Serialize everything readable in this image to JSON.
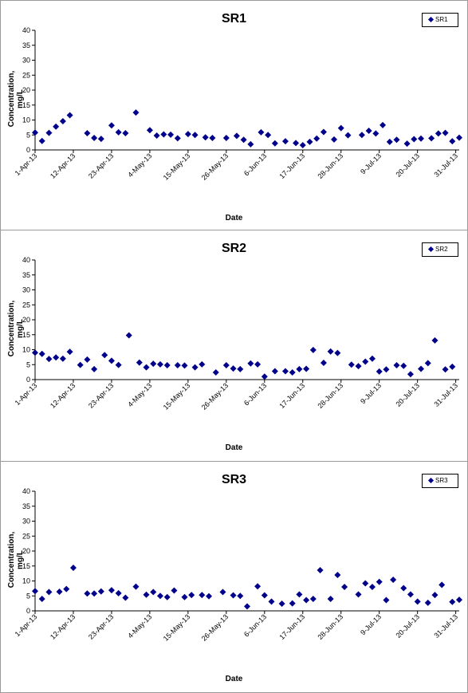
{
  "charts": [
    {
      "title": "SR1",
      "legend": "SR1"
    },
    {
      "title": "SR2",
      "legend": "SR2"
    },
    {
      "title": "SR3",
      "legend": "SR3"
    }
  ],
  "chart_data": [
    {
      "type": "scatter",
      "title": "SR1",
      "xlabel": "Date",
      "ylabel": "Concentration, mg/L",
      "ylim": [
        0,
        40
      ],
      "yticks": [
        0,
        5,
        10,
        15,
        20,
        25,
        30,
        35,
        40
      ],
      "xticks": [
        "1-Apr-13",
        "12-Apr-13",
        "23-Apr-13",
        "4-May-13",
        "15-May-13",
        "26-May-13",
        "6-Jun-13",
        "17-Jun-13",
        "28-Jun-13",
        "9-Jul-13",
        "20-Jul-13",
        "31-Jul-13"
      ],
      "xlim": [
        "2013-04-01",
        "2013-08-01"
      ],
      "grid": false,
      "legend_position": "top-right",
      "marker_color": "#00008b",
      "series": [
        {
          "name": "SR1",
          "points": [
            [
              "2013-04-01",
              5.8
            ],
            [
              "2013-04-03",
              3.0
            ],
            [
              "2013-04-05",
              5.7
            ],
            [
              "2013-04-07",
              7.8
            ],
            [
              "2013-04-09",
              9.6
            ],
            [
              "2013-04-11",
              11.6
            ],
            [
              "2013-04-16",
              5.6
            ],
            [
              "2013-04-18",
              4.0
            ],
            [
              "2013-04-20",
              3.7
            ],
            [
              "2013-04-23",
              8.2
            ],
            [
              "2013-04-25",
              5.9
            ],
            [
              "2013-04-27",
              5.6
            ],
            [
              "2013-04-30",
              12.5
            ],
            [
              "2013-05-04",
              6.6
            ],
            [
              "2013-05-06",
              4.8
            ],
            [
              "2013-05-08",
              5.2
            ],
            [
              "2013-05-10",
              5.1
            ],
            [
              "2013-05-12",
              3.9
            ],
            [
              "2013-05-15",
              5.3
            ],
            [
              "2013-05-17",
              5.0
            ],
            [
              "2013-05-20",
              4.2
            ],
            [
              "2013-05-22",
              4.0
            ],
            [
              "2013-05-26",
              4.0
            ],
            [
              "2013-05-29",
              4.7
            ],
            [
              "2013-05-31",
              3.4
            ],
            [
              "2013-06-02",
              1.9
            ],
            [
              "2013-06-05",
              5.9
            ],
            [
              "2013-06-07",
              5.0
            ],
            [
              "2013-06-09",
              2.2
            ],
            [
              "2013-06-12",
              2.9
            ],
            [
              "2013-06-15",
              2.3
            ],
            [
              "2013-06-17",
              1.6
            ],
            [
              "2013-06-19",
              2.7
            ],
            [
              "2013-06-21",
              3.8
            ],
            [
              "2013-06-23",
              6.0
            ],
            [
              "2013-06-26",
              3.5
            ],
            [
              "2013-06-28",
              7.3
            ],
            [
              "2013-06-30",
              4.9
            ],
            [
              "2013-07-04",
              5.0
            ],
            [
              "2013-07-06",
              6.4
            ],
            [
              "2013-07-08",
              5.5
            ],
            [
              "2013-07-10",
              8.3
            ],
            [
              "2013-07-12",
              2.7
            ],
            [
              "2013-07-14",
              3.4
            ],
            [
              "2013-07-17",
              2.1
            ],
            [
              "2013-07-19",
              3.6
            ],
            [
              "2013-07-21",
              3.8
            ],
            [
              "2013-07-24",
              3.9
            ],
            [
              "2013-07-26",
              5.5
            ],
            [
              "2013-07-28",
              5.7
            ],
            [
              "2013-07-30",
              2.9
            ],
            [
              "2013-08-01",
              4.1
            ]
          ]
        }
      ]
    },
    {
      "type": "scatter",
      "title": "SR2",
      "xlabel": "Date",
      "ylabel": "Concentration, mg/L",
      "ylim": [
        0,
        40
      ],
      "yticks": [
        0,
        5,
        10,
        15,
        20,
        25,
        30,
        35,
        40
      ],
      "xticks": [
        "1-Apr-13",
        "12-Apr-13",
        "23-Apr-13",
        "4-May-13",
        "15-May-13",
        "26-May-13",
        "6-Jun-13",
        "17-Jun-13",
        "28-Jun-13",
        "9-Jul-13",
        "20-Jul-13",
        "31-Jul-13"
      ],
      "xlim": [
        "2013-04-01",
        "2013-08-01"
      ],
      "grid": false,
      "legend_position": "top-right",
      "marker_color": "#00008b",
      "series": [
        {
          "name": "SR2",
          "points": [
            [
              "2013-04-01",
              9.0
            ],
            [
              "2013-04-03",
              8.6
            ],
            [
              "2013-04-05",
              6.9
            ],
            [
              "2013-04-07",
              7.4
            ],
            [
              "2013-04-09",
              7.0
            ],
            [
              "2013-04-11",
              9.3
            ],
            [
              "2013-04-14",
              4.9
            ],
            [
              "2013-04-16",
              6.7
            ],
            [
              "2013-04-18",
              3.5
            ],
            [
              "2013-04-21",
              8.2
            ],
            [
              "2013-04-23",
              6.3
            ],
            [
              "2013-04-25",
              4.9
            ],
            [
              "2013-04-28",
              14.8
            ],
            [
              "2013-05-01",
              5.7
            ],
            [
              "2013-05-03",
              4.1
            ],
            [
              "2013-05-05",
              5.3
            ],
            [
              "2013-05-07",
              5.1
            ],
            [
              "2013-05-09",
              4.8
            ],
            [
              "2013-05-12",
              4.8
            ],
            [
              "2013-05-14",
              4.7
            ],
            [
              "2013-05-17",
              4.1
            ],
            [
              "2013-05-19",
              5.1
            ],
            [
              "2013-05-23",
              2.4
            ],
            [
              "2013-05-26",
              4.8
            ],
            [
              "2013-05-28",
              3.7
            ],
            [
              "2013-05-30",
              3.5
            ],
            [
              "2013-06-02",
              5.4
            ],
            [
              "2013-06-04",
              5.1
            ],
            [
              "2013-06-06",
              1.0
            ],
            [
              "2013-06-09",
              2.8
            ],
            [
              "2013-06-12",
              2.8
            ],
            [
              "2013-06-14",
              2.4
            ],
            [
              "2013-06-16",
              3.5
            ],
            [
              "2013-06-18",
              3.6
            ],
            [
              "2013-06-20",
              9.9
            ],
            [
              "2013-06-23",
              5.6
            ],
            [
              "2013-06-25",
              9.4
            ],
            [
              "2013-06-27",
              8.9
            ],
            [
              "2013-07-01",
              5.0
            ],
            [
              "2013-07-03",
              4.5
            ],
            [
              "2013-07-05",
              6.0
            ],
            [
              "2013-07-07",
              7.0
            ],
            [
              "2013-07-09",
              2.7
            ],
            [
              "2013-07-11",
              3.4
            ],
            [
              "2013-07-14",
              4.8
            ],
            [
              "2013-07-16",
              4.6
            ],
            [
              "2013-07-18",
              1.8
            ],
            [
              "2013-07-21",
              3.6
            ],
            [
              "2013-07-23",
              5.5
            ],
            [
              "2013-07-25",
              13.1
            ],
            [
              "2013-07-28",
              3.4
            ],
            [
              "2013-07-30",
              4.3
            ]
          ]
        }
      ]
    },
    {
      "type": "scatter",
      "title": "SR3",
      "xlabel": "Date",
      "ylabel": "Concentration, mg/L",
      "ylim": [
        0,
        40
      ],
      "yticks": [
        0,
        5,
        10,
        15,
        20,
        25,
        30,
        35,
        40
      ],
      "xticks": [
        "1-Apr-13",
        "12-Apr-13",
        "23-Apr-13",
        "4-May-13",
        "15-May-13",
        "26-May-13",
        "6-Jun-13",
        "17-Jun-13",
        "28-Jun-13",
        "9-Jul-13",
        "20-Jul-13",
        "31-Jul-13"
      ],
      "xlim": [
        "2013-04-01",
        "2013-08-01"
      ],
      "grid": false,
      "legend_position": "top-right",
      "marker_color": "#00008b",
      "series": [
        {
          "name": "SR3",
          "points": [
            [
              "2013-04-01",
              6.6
            ],
            [
              "2013-04-03",
              4.0
            ],
            [
              "2013-04-05",
              6.3
            ],
            [
              "2013-04-08",
              6.4
            ],
            [
              "2013-04-10",
              7.3
            ],
            [
              "2013-04-12",
              14.4
            ],
            [
              "2013-04-16",
              5.8
            ],
            [
              "2013-04-18",
              5.8
            ],
            [
              "2013-04-20",
              6.5
            ],
            [
              "2013-04-23",
              6.9
            ],
            [
              "2013-04-25",
              5.9
            ],
            [
              "2013-04-27",
              4.4
            ],
            [
              "2013-04-30",
              8.1
            ],
            [
              "2013-05-03",
              5.4
            ],
            [
              "2013-05-05",
              6.3
            ],
            [
              "2013-05-07",
              5.0
            ],
            [
              "2013-05-09",
              4.6
            ],
            [
              "2013-05-11",
              6.8
            ],
            [
              "2013-05-14",
              4.6
            ],
            [
              "2013-05-16",
              5.3
            ],
            [
              "2013-05-19",
              5.3
            ],
            [
              "2013-05-21",
              4.9
            ],
            [
              "2013-05-25",
              6.3
            ],
            [
              "2013-05-28",
              5.2
            ],
            [
              "2013-05-30",
              5.0
            ],
            [
              "2013-06-01",
              1.5
            ],
            [
              "2013-06-04",
              8.2
            ],
            [
              "2013-06-06",
              5.2
            ],
            [
              "2013-06-08",
              3.1
            ],
            [
              "2013-06-11",
              2.4
            ],
            [
              "2013-06-14",
              2.5
            ],
            [
              "2013-06-16",
              5.5
            ],
            [
              "2013-06-18",
              3.6
            ],
            [
              "2013-06-20",
              4.0
            ],
            [
              "2013-06-22",
              13.6
            ],
            [
              "2013-06-25",
              4.0
            ],
            [
              "2013-06-27",
              12.0
            ],
            [
              "2013-06-29",
              8.0
            ],
            [
              "2013-07-03",
              5.5
            ],
            [
              "2013-07-05",
              9.2
            ],
            [
              "2013-07-07",
              8.0
            ],
            [
              "2013-07-09",
              9.7
            ],
            [
              "2013-07-11",
              3.6
            ],
            [
              "2013-07-13",
              10.4
            ],
            [
              "2013-07-16",
              7.6
            ],
            [
              "2013-07-18",
              5.5
            ],
            [
              "2013-07-20",
              3.1
            ],
            [
              "2013-07-23",
              2.7
            ],
            [
              "2013-07-25",
              5.3
            ],
            [
              "2013-07-27",
              8.7
            ],
            [
              "2013-07-30",
              3.0
            ],
            [
              "2013-08-01",
              3.7
            ]
          ]
        }
      ]
    }
  ]
}
